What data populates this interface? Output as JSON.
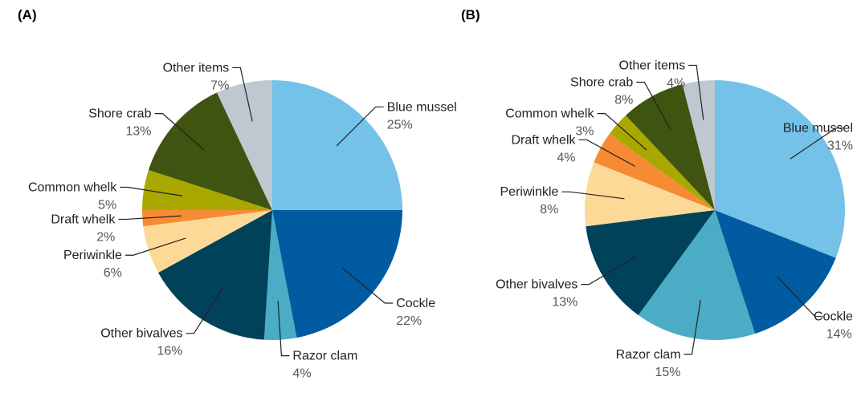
{
  "chart_data": [
    {
      "type": "pie",
      "title": "(A)",
      "categories": [
        "Blue mussel",
        "Cockle",
        "Razor clam",
        "Other bivalves",
        "Periwinkle",
        "Draft whelk",
        "Common whelk",
        "Shore crab",
        "Other items"
      ],
      "values": [
        25,
        22,
        4,
        16,
        6,
        2,
        5,
        13,
        7
      ],
      "value_labels": [
        "25%",
        "22%",
        "4%",
        "16%",
        "6%",
        "2%",
        "5%",
        "13%",
        "7%"
      ],
      "colors": [
        "#74c2e8",
        "#005ba1",
        "#4bacc6",
        "#00425a",
        "#fdd997",
        "#f68b33",
        "#a9a800",
        "#3e5410",
        "#bfc8d0"
      ]
    },
    {
      "type": "pie",
      "title": "(B)",
      "categories": [
        "Blue mussel",
        "Cockle",
        "Razor clam",
        "Other bivalves",
        "Periwinkle",
        "Draft whelk",
        "Common whelk",
        "Shore crab",
        "Other items"
      ],
      "values": [
        31,
        14,
        15,
        13,
        8,
        4,
        3,
        8,
        4
      ],
      "value_labels": [
        "31%",
        "14%",
        "15%",
        "13%",
        "8%",
        "4%",
        "3%",
        "8%",
        "4%"
      ],
      "colors": [
        "#74c2e8",
        "#005ba1",
        "#4bacc6",
        "#00425a",
        "#fdd997",
        "#f68b33",
        "#a9a800",
        "#3e5410",
        "#bfc8d0"
      ]
    }
  ]
}
